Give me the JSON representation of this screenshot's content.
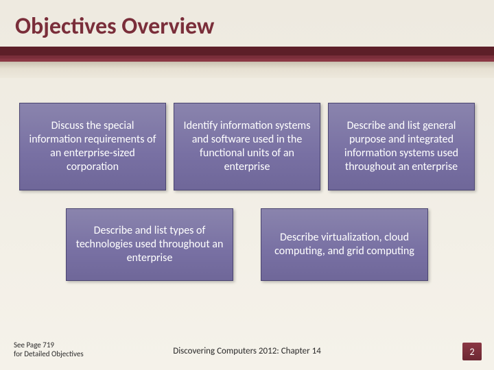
{
  "title": "Objectives Overview",
  "colors": {
    "title": "#7a2e3a",
    "accent_dark": "#5d1f28",
    "accent_mid": "#8a3744",
    "box_fill_top": "#8a84ad",
    "box_fill_bottom": "#6f6799",
    "box_border": "#4a4470",
    "box_text": "#ffffff",
    "background": "#eeeae0",
    "pagenum_bg": "#8a3744"
  },
  "typography": {
    "title_fontsize": 34,
    "box_fontsize": 16,
    "footer_fontsize": 11,
    "center_footer_fontsize": 13
  },
  "row1": [
    "Discuss the special information requirements of an enterprise-sized corporation",
    "Identify information systems and software used in the functional units of an enterprise",
    "Describe and list general purpose and integrated information systems used throughout an enterprise"
  ],
  "row2": [
    "Describe and list types of technologies used throughout an enterprise",
    "Describe virtualization, cloud computing, and grid computing"
  ],
  "footer_left_line1": "See Page 719",
  "footer_left_line2": "for Detailed Objectives",
  "footer_center": "Discovering Computers 2012: Chapter 14",
  "page_number": "2"
}
